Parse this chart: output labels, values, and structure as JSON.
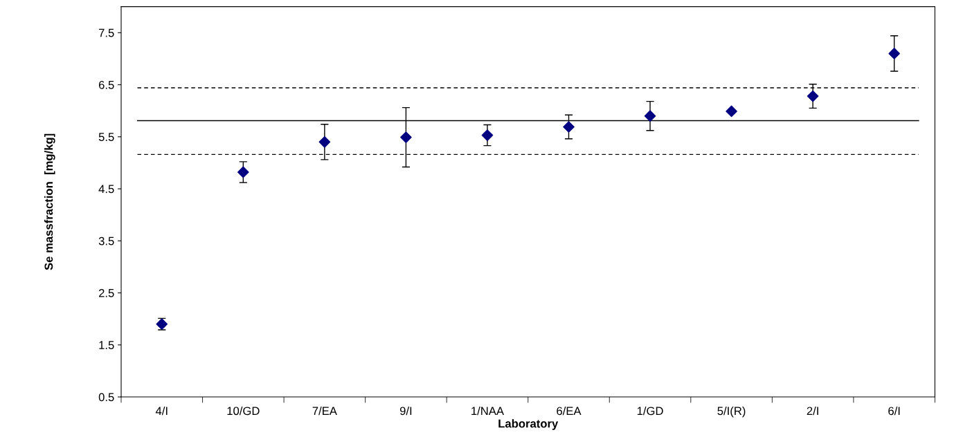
{
  "chart_data": {
    "type": "scatter",
    "xlabel": "Laboratory",
    "ylabel": "Se massfraction  [mg/kg]",
    "categories": [
      "4/I",
      "10/GD",
      "7/EA",
      "9/I",
      "1/NAA",
      "6/EA",
      "1/GD",
      "5/I(R)",
      "2/I",
      "6/I"
    ],
    "series": [
      {
        "color": "#000080",
        "values": [
          1.9,
          4.82,
          5.4,
          5.49,
          5.53,
          5.69,
          5.9,
          5.99,
          6.28,
          7.1
        ],
        "errors": [
          0.11,
          0.2,
          0.34,
          0.57,
          0.2,
          0.23,
          0.28,
          null,
          0.23,
          0.34
        ]
      }
    ],
    "ylim": [
      0.5,
      8.0
    ],
    "yticks": [
      0.5,
      1.5,
      2.5,
      3.5,
      4.5,
      5.5,
      6.5,
      7.5
    ],
    "marker": "diamond",
    "grid": false,
    "legend": false,
    "ref_lines": [
      {
        "axis": "y",
        "value": 5.81,
        "color": "#000000",
        "line_style": "solid"
      },
      {
        "axis": "y",
        "value": 6.44,
        "color": "#000000",
        "line_style": "dashed"
      },
      {
        "axis": "y",
        "value": 5.16,
        "color": "#000000",
        "line_style": "dashed"
      }
    ]
  }
}
